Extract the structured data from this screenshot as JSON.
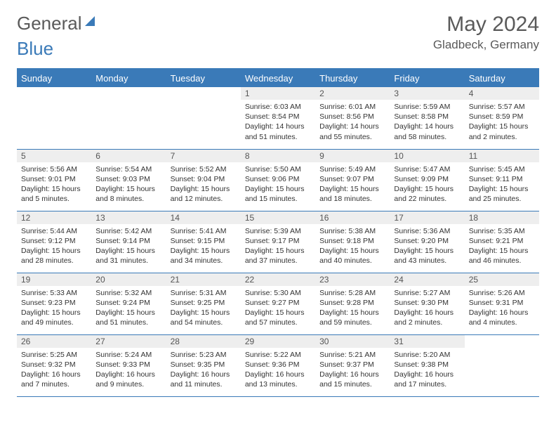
{
  "brand": {
    "part1": "General",
    "part2": "Blue"
  },
  "title": "May 2024",
  "location": "Gladbeck, Germany",
  "colors": {
    "accent": "#3a7ab8",
    "header_bg": "#3a7ab8",
    "daynum_bg": "#eeeeee",
    "text": "#333333"
  },
  "weekdays": [
    "Sunday",
    "Monday",
    "Tuesday",
    "Wednesday",
    "Thursday",
    "Friday",
    "Saturday"
  ],
  "weeks": [
    [
      {
        "n": "",
        "sr": "",
        "ss": "",
        "dl": ""
      },
      {
        "n": "",
        "sr": "",
        "ss": "",
        "dl": ""
      },
      {
        "n": "",
        "sr": "",
        "ss": "",
        "dl": ""
      },
      {
        "n": "1",
        "sr": "Sunrise: 6:03 AM",
        "ss": "Sunset: 8:54 PM",
        "dl": "Daylight: 14 hours and 51 minutes."
      },
      {
        "n": "2",
        "sr": "Sunrise: 6:01 AM",
        "ss": "Sunset: 8:56 PM",
        "dl": "Daylight: 14 hours and 55 minutes."
      },
      {
        "n": "3",
        "sr": "Sunrise: 5:59 AM",
        "ss": "Sunset: 8:58 PM",
        "dl": "Daylight: 14 hours and 58 minutes."
      },
      {
        "n": "4",
        "sr": "Sunrise: 5:57 AM",
        "ss": "Sunset: 8:59 PM",
        "dl": "Daylight: 15 hours and 2 minutes."
      }
    ],
    [
      {
        "n": "5",
        "sr": "Sunrise: 5:56 AM",
        "ss": "Sunset: 9:01 PM",
        "dl": "Daylight: 15 hours and 5 minutes."
      },
      {
        "n": "6",
        "sr": "Sunrise: 5:54 AM",
        "ss": "Sunset: 9:03 PM",
        "dl": "Daylight: 15 hours and 8 minutes."
      },
      {
        "n": "7",
        "sr": "Sunrise: 5:52 AM",
        "ss": "Sunset: 9:04 PM",
        "dl": "Daylight: 15 hours and 12 minutes."
      },
      {
        "n": "8",
        "sr": "Sunrise: 5:50 AM",
        "ss": "Sunset: 9:06 PM",
        "dl": "Daylight: 15 hours and 15 minutes."
      },
      {
        "n": "9",
        "sr": "Sunrise: 5:49 AM",
        "ss": "Sunset: 9:07 PM",
        "dl": "Daylight: 15 hours and 18 minutes."
      },
      {
        "n": "10",
        "sr": "Sunrise: 5:47 AM",
        "ss": "Sunset: 9:09 PM",
        "dl": "Daylight: 15 hours and 22 minutes."
      },
      {
        "n": "11",
        "sr": "Sunrise: 5:45 AM",
        "ss": "Sunset: 9:11 PM",
        "dl": "Daylight: 15 hours and 25 minutes."
      }
    ],
    [
      {
        "n": "12",
        "sr": "Sunrise: 5:44 AM",
        "ss": "Sunset: 9:12 PM",
        "dl": "Daylight: 15 hours and 28 minutes."
      },
      {
        "n": "13",
        "sr": "Sunrise: 5:42 AM",
        "ss": "Sunset: 9:14 PM",
        "dl": "Daylight: 15 hours and 31 minutes."
      },
      {
        "n": "14",
        "sr": "Sunrise: 5:41 AM",
        "ss": "Sunset: 9:15 PM",
        "dl": "Daylight: 15 hours and 34 minutes."
      },
      {
        "n": "15",
        "sr": "Sunrise: 5:39 AM",
        "ss": "Sunset: 9:17 PM",
        "dl": "Daylight: 15 hours and 37 minutes."
      },
      {
        "n": "16",
        "sr": "Sunrise: 5:38 AM",
        "ss": "Sunset: 9:18 PM",
        "dl": "Daylight: 15 hours and 40 minutes."
      },
      {
        "n": "17",
        "sr": "Sunrise: 5:36 AM",
        "ss": "Sunset: 9:20 PM",
        "dl": "Daylight: 15 hours and 43 minutes."
      },
      {
        "n": "18",
        "sr": "Sunrise: 5:35 AM",
        "ss": "Sunset: 9:21 PM",
        "dl": "Daylight: 15 hours and 46 minutes."
      }
    ],
    [
      {
        "n": "19",
        "sr": "Sunrise: 5:33 AM",
        "ss": "Sunset: 9:23 PM",
        "dl": "Daylight: 15 hours and 49 minutes."
      },
      {
        "n": "20",
        "sr": "Sunrise: 5:32 AM",
        "ss": "Sunset: 9:24 PM",
        "dl": "Daylight: 15 hours and 51 minutes."
      },
      {
        "n": "21",
        "sr": "Sunrise: 5:31 AM",
        "ss": "Sunset: 9:25 PM",
        "dl": "Daylight: 15 hours and 54 minutes."
      },
      {
        "n": "22",
        "sr": "Sunrise: 5:30 AM",
        "ss": "Sunset: 9:27 PM",
        "dl": "Daylight: 15 hours and 57 minutes."
      },
      {
        "n": "23",
        "sr": "Sunrise: 5:28 AM",
        "ss": "Sunset: 9:28 PM",
        "dl": "Daylight: 15 hours and 59 minutes."
      },
      {
        "n": "24",
        "sr": "Sunrise: 5:27 AM",
        "ss": "Sunset: 9:30 PM",
        "dl": "Daylight: 16 hours and 2 minutes."
      },
      {
        "n": "25",
        "sr": "Sunrise: 5:26 AM",
        "ss": "Sunset: 9:31 PM",
        "dl": "Daylight: 16 hours and 4 minutes."
      }
    ],
    [
      {
        "n": "26",
        "sr": "Sunrise: 5:25 AM",
        "ss": "Sunset: 9:32 PM",
        "dl": "Daylight: 16 hours and 7 minutes."
      },
      {
        "n": "27",
        "sr": "Sunrise: 5:24 AM",
        "ss": "Sunset: 9:33 PM",
        "dl": "Daylight: 16 hours and 9 minutes."
      },
      {
        "n": "28",
        "sr": "Sunrise: 5:23 AM",
        "ss": "Sunset: 9:35 PM",
        "dl": "Daylight: 16 hours and 11 minutes."
      },
      {
        "n": "29",
        "sr": "Sunrise: 5:22 AM",
        "ss": "Sunset: 9:36 PM",
        "dl": "Daylight: 16 hours and 13 minutes."
      },
      {
        "n": "30",
        "sr": "Sunrise: 5:21 AM",
        "ss": "Sunset: 9:37 PM",
        "dl": "Daylight: 16 hours and 15 minutes."
      },
      {
        "n": "31",
        "sr": "Sunrise: 5:20 AM",
        "ss": "Sunset: 9:38 PM",
        "dl": "Daylight: 16 hours and 17 minutes."
      },
      {
        "n": "",
        "sr": "",
        "ss": "",
        "dl": ""
      }
    ]
  ]
}
